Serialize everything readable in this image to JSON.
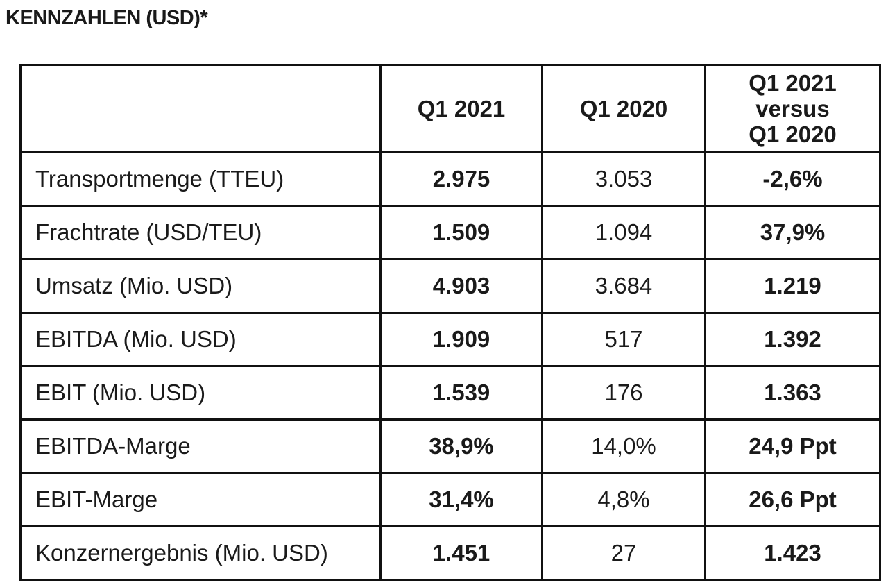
{
  "title": "KENNZAHLEN (USD)*",
  "table": {
    "headers": {
      "metric": "",
      "col1": "Q1 2021",
      "col2": "Q1 2020",
      "col3_lines": [
        "Q1 2021",
        "versus",
        "Q1 2020"
      ]
    },
    "rows": [
      {
        "label": "Transportmenge (TTEU)",
        "q1_2021": "2.975",
        "q1_2020": "3.053",
        "change": "-2,6%"
      },
      {
        "label": "Frachtrate (USD/TEU)",
        "q1_2021": "1.509",
        "q1_2020": "1.094",
        "change": "37,9%"
      },
      {
        "label": "Umsatz (Mio. USD)",
        "q1_2021": "4.903",
        "q1_2020": "3.684",
        "change": "1.219"
      },
      {
        "label": "EBITDA (Mio. USD)",
        "q1_2021": "1.909",
        "q1_2020": "517",
        "change": "1.392"
      },
      {
        "label": "EBIT (Mio. USD)",
        "q1_2021": "1.539",
        "q1_2020": "176",
        "change": "1.363"
      },
      {
        "label": "EBITDA-Marge",
        "q1_2021": "38,9%",
        "q1_2020": "14,0%",
        "change": "24,9 Ppt"
      },
      {
        "label": "EBIT-Marge",
        "q1_2021": "31,4%",
        "q1_2020": "4,8%",
        "change": "26,6 Ppt"
      },
      {
        "label": "Konzernergebnis (Mio. USD)",
        "q1_2021": "1.451",
        "q1_2020": "27",
        "change": "1.423"
      }
    ]
  }
}
